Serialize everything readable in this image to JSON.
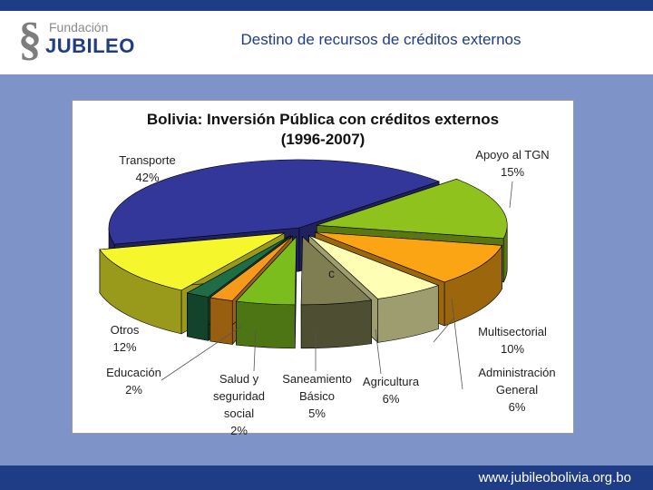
{
  "header": {
    "logo_top": "Fundación",
    "logo_bottom": "JUBILEO",
    "slide_title": "Destino de recursos de créditos externos"
  },
  "footer": {
    "url": "www.jubileobolivia.org.bo"
  },
  "chart_data": {
    "type": "pie",
    "title": "Bolivia: Inversión Pública con créditos externos",
    "subtitle": "(1996-2007)",
    "slices": [
      {
        "name": "Transporte",
        "value": 42,
        "color": "#34379a"
      },
      {
        "name": "Apoyo al TGN",
        "value": 15,
        "color": "#8fc21c"
      },
      {
        "name": "Multisectorial",
        "value": 10,
        "color": "#fba414"
      },
      {
        "name": "Administración General",
        "value": 6,
        "color": "#fefeb4"
      },
      {
        "name": "Agricultura",
        "value": 6,
        "color": "#7e7e52"
      },
      {
        "name": "Saneamiento Básico",
        "value": 5,
        "color": "#7cbd1e"
      },
      {
        "name": "Salud y seguridad social",
        "value": 2,
        "color": "#f79a1c"
      },
      {
        "name": "Educación",
        "value": 2,
        "color": "#1e6d46"
      },
      {
        "name": "Otros",
        "value": 12,
        "color": "#f6f62c"
      }
    ],
    "labels": [
      {
        "lines": [
          "Transporte",
          "42%"
        ]
      },
      {
        "lines": [
          "Apoyo al TGN",
          "15%"
        ]
      },
      {
        "lines": [
          "Multisectorial",
          "10%"
        ]
      },
      {
        "lines": [
          "Administración",
          "General",
          "6%"
        ]
      },
      {
        "lines": [
          "Agricultura",
          "6%"
        ]
      },
      {
        "lines": [
          "Saneamiento",
          "Básico",
          "5%"
        ]
      },
      {
        "lines": [
          "Salud y",
          "seguridad",
          "social",
          "2%"
        ]
      },
      {
        "lines": [
          "Educación",
          "2%"
        ]
      },
      {
        "lines": [
          "Otros",
          "12%"
        ]
      }
    ],
    "stray_mark": "c",
    "legend": "none",
    "grid": false
  }
}
